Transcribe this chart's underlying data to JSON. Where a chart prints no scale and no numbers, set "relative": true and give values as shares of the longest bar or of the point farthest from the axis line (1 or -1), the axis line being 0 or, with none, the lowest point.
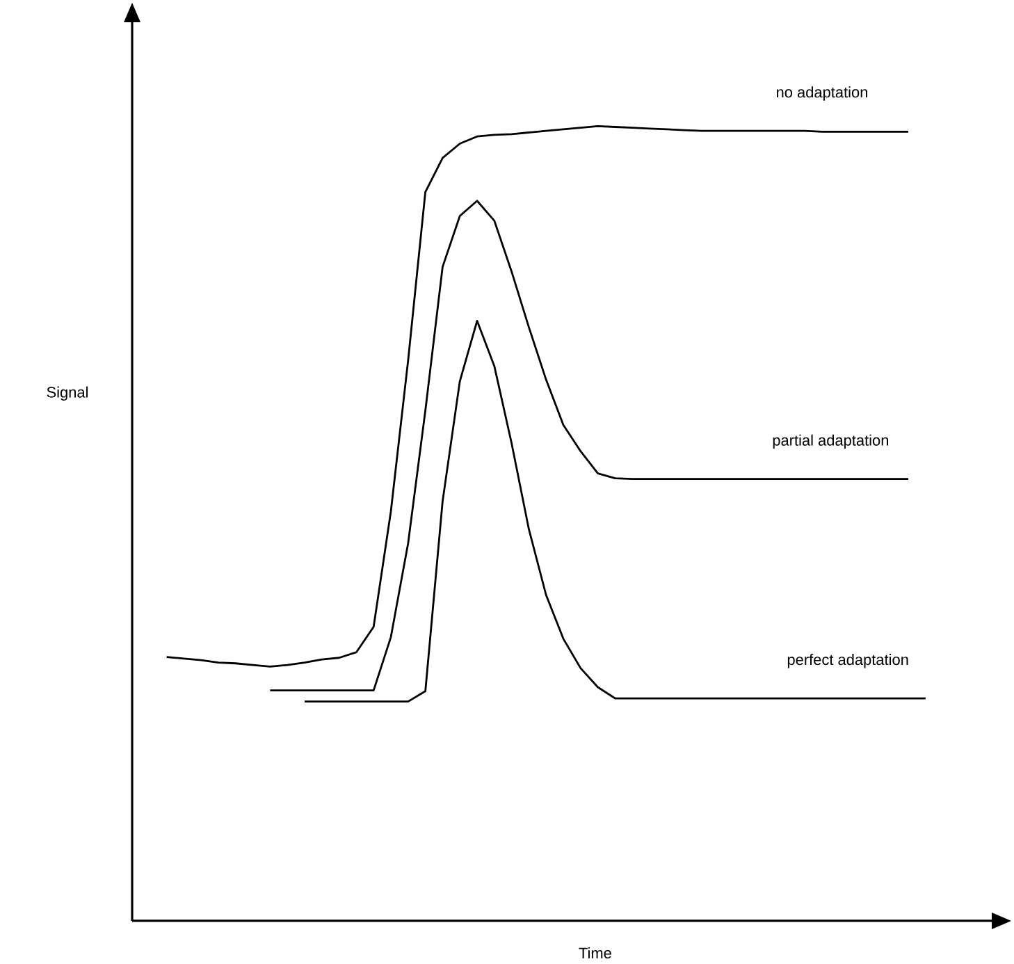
{
  "chart_data": {
    "type": "line",
    "relative": true,
    "xlabel": "Time",
    "ylabel": "Signal",
    "line_style": "solid",
    "marker": "none",
    "categories": [
      null,
      null,
      null,
      null,
      null,
      null,
      null,
      null,
      null,
      null,
      null,
      null,
      null,
      null,
      null,
      null,
      null,
      null,
      null,
      null,
      null,
      null,
      null,
      null,
      null,
      null,
      null,
      null,
      null,
      null,
      null,
      null,
      null,
      null,
      null,
      null,
      null,
      null,
      null,
      null,
      null,
      null,
      null,
      null,
      null,
      null
    ],
    "series": [
      {
        "name": "no adaptation",
        "color": "#000000",
        "values": [
          0.332,
          0.33,
          0.328,
          0.325,
          0.324,
          0.322,
          0.32,
          0.322,
          0.325,
          0.329,
          0.331,
          0.338,
          0.37,
          0.515,
          0.705,
          0.917,
          0.96,
          0.978,
          0.987,
          0.989,
          0.99,
          0.992,
          0.994,
          0.996,
          0.998,
          1.0,
          0.999,
          0.998,
          0.997,
          0.996,
          0.995,
          0.994,
          0.994,
          0.994,
          0.994,
          0.994,
          0.994,
          0.994,
          0.993,
          0.993,
          0.993,
          0.993,
          0.993,
          0.993,
          null,
          null
        ]
      },
      {
        "name": "partial adaptation",
        "color": "#000000",
        "values": [
          null,
          null,
          null,
          null,
          null,
          null,
          0.29,
          0.29,
          0.29,
          0.29,
          0.29,
          0.29,
          0.29,
          0.357,
          0.475,
          0.642,
          0.823,
          0.887,
          0.906,
          0.881,
          0.817,
          0.747,
          0.681,
          0.624,
          0.591,
          0.563,
          0.557,
          0.556,
          0.556,
          0.556,
          0.556,
          0.556,
          0.556,
          0.556,
          0.556,
          0.556,
          0.556,
          0.556,
          0.556,
          0.556,
          0.556,
          0.556,
          0.556,
          0.556,
          null,
          null
        ]
      },
      {
        "name": "perfect adaptation",
        "color": "#000000",
        "values": [
          null,
          null,
          null,
          null,
          null,
          null,
          null,
          null,
          0.276,
          0.276,
          0.276,
          0.276,
          0.276,
          0.276,
          0.276,
          0.289,
          0.528,
          0.679,
          0.755,
          0.698,
          0.601,
          0.493,
          0.41,
          0.355,
          0.318,
          0.294,
          0.28,
          0.28,
          0.28,
          0.28,
          0.28,
          0.28,
          0.28,
          0.28,
          0.28,
          0.28,
          0.28,
          0.28,
          0.28,
          0.28,
          0.28,
          0.28,
          0.28,
          0.28,
          0.28,
          null
        ]
      }
    ]
  }
}
